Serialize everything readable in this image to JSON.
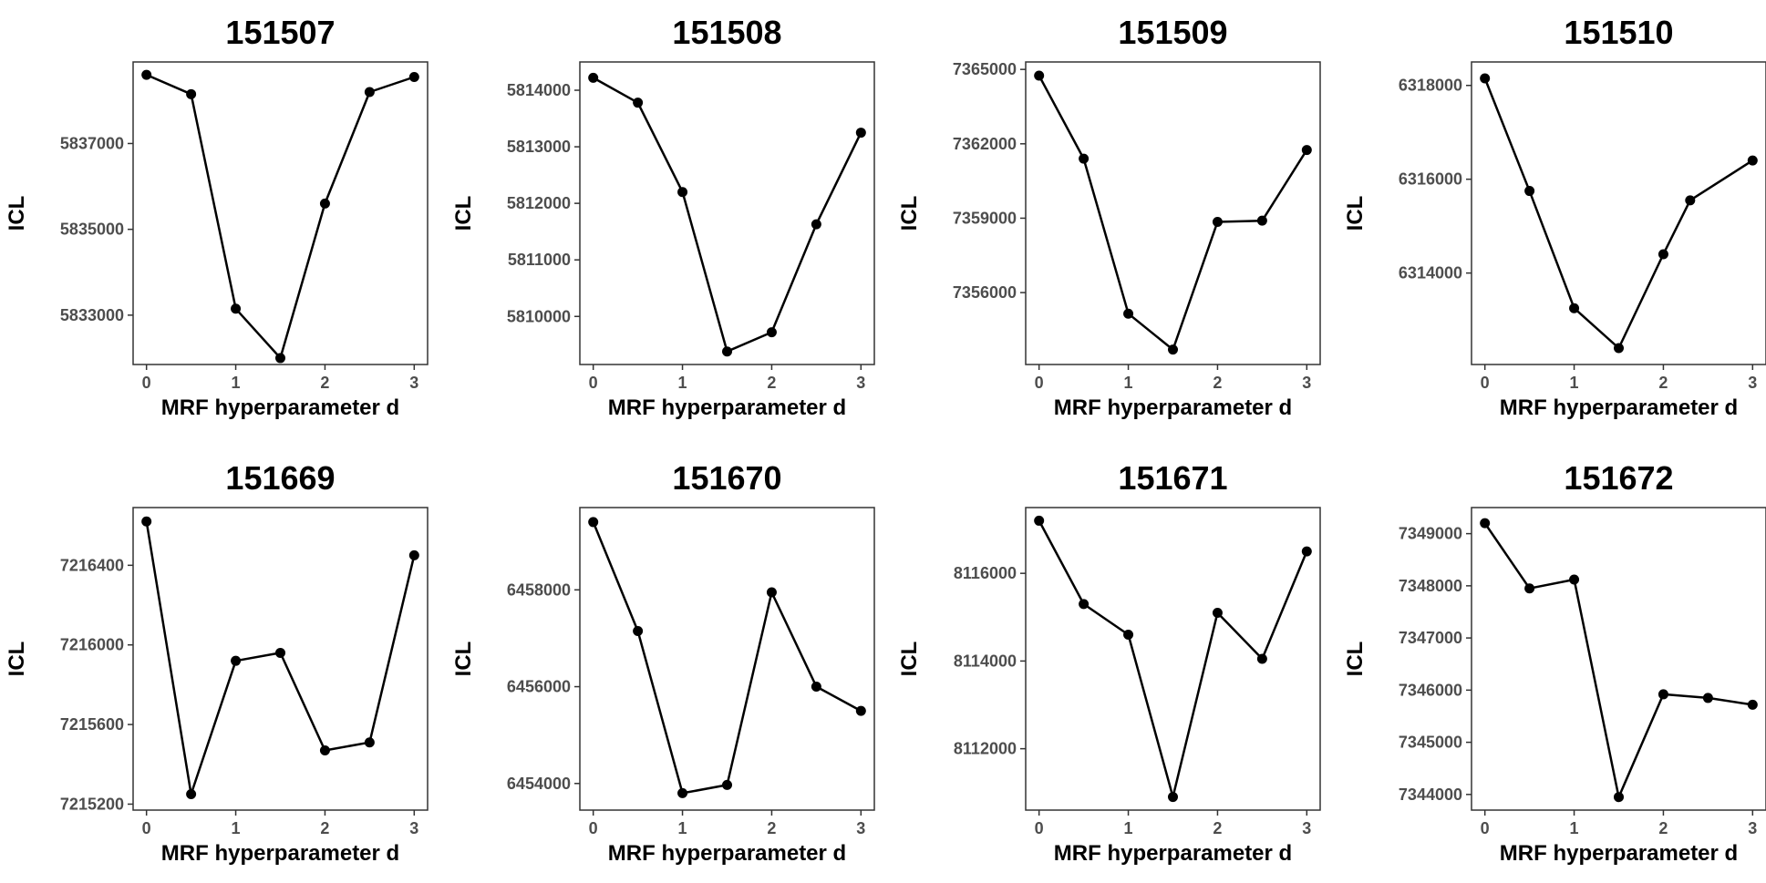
{
  "style": {
    "line_color": "#000000",
    "point_color": "#000000",
    "tick_label_color": "#4d4d4d",
    "frame_color": "#333333",
    "background": "#ffffff"
  },
  "chart_data": [
    {
      "type": "line",
      "title": "151507",
      "xlabel": "MRF hyperparameter d",
      "ylabel": "ICL",
      "x": [
        0,
        0.5,
        1,
        1.5,
        2,
        2.5,
        3
      ],
      "series": [
        {
          "values": [
            5838600,
            5838150,
            5833150,
            5832000,
            5835600,
            5838200,
            5838550
          ]
        }
      ],
      "xlim": [
        -0.15,
        3.15
      ],
      "ylim": [
        5831850,
        5838900
      ],
      "xticks": [
        0,
        1,
        2,
        3
      ],
      "yticks": [
        5833000,
        5835000,
        5837000
      ],
      "xtick_labels": [
        "0",
        "1",
        "2",
        "3"
      ],
      "ytick_labels": [
        "5833000",
        "5835000",
        "5837000"
      ],
      "grid": false
    },
    {
      "type": "line",
      "title": "151508",
      "xlabel": "MRF hyperparameter d",
      "ylabel": "ICL",
      "x": [
        0,
        0.5,
        1,
        1.5,
        2,
        2.5,
        3
      ],
      "series": [
        {
          "values": [
            5814220,
            5813780,
            5812200,
            5809380,
            5809720,
            5811630,
            5813250
          ]
        }
      ],
      "xlim": [
        -0.15,
        3.15
      ],
      "ylim": [
        5809150,
        5814500
      ],
      "xticks": [
        0,
        1,
        2,
        3
      ],
      "yticks": [
        5810000,
        5811000,
        5812000,
        5813000,
        5814000
      ],
      "xtick_labels": [
        "0",
        "1",
        "2",
        "3"
      ],
      "ytick_labels": [
        "5810000",
        "5811000",
        "5812000",
        "5813000",
        "5814000"
      ],
      "grid": false
    },
    {
      "type": "line",
      "title": "151509",
      "xlabel": "MRF hyperparameter d",
      "ylabel": "ICL",
      "x": [
        0,
        0.5,
        1,
        1.5,
        2,
        2.5,
        3
      ],
      "series": [
        {
          "values": [
            7364750,
            7361400,
            7355150,
            7353700,
            7358850,
            7358900,
            7361750
          ]
        }
      ],
      "xlim": [
        -0.15,
        3.15
      ],
      "ylim": [
        7353100,
        7365300
      ],
      "xticks": [
        0,
        1,
        2,
        3
      ],
      "yticks": [
        7356000,
        7359000,
        7362000,
        7365000
      ],
      "xtick_labels": [
        "0",
        "1",
        "2",
        "3"
      ],
      "ytick_labels": [
        "7356000",
        "7359000",
        "7362000",
        "7365000"
      ],
      "grid": false
    },
    {
      "type": "line",
      "title": "151510",
      "xlabel": "MRF hyperparameter d",
      "ylabel": "ICL",
      "x": [
        0,
        0.5,
        1,
        1.5,
        2,
        2.3,
        3
      ],
      "series": [
        {
          "values": [
            6318150,
            6315750,
            6313250,
            6312400,
            6314400,
            6315550,
            6316400
          ]
        }
      ],
      "xlim": [
        -0.15,
        3.15
      ],
      "ylim": [
        6312050,
        6318500
      ],
      "xticks": [
        0,
        1,
        2,
        3
      ],
      "yticks": [
        6314000,
        6316000,
        6318000
      ],
      "xtick_labels": [
        "0",
        "1",
        "2",
        "3"
      ],
      "ytick_labels": [
        "6314000",
        "6316000",
        "6318000"
      ],
      "grid": false
    },
    {
      "type": "line",
      "title": "151669",
      "xlabel": "MRF hyperparameter d",
      "ylabel": "ICL",
      "x": [
        0,
        0.5,
        1,
        1.5,
        2,
        2.5,
        3
      ],
      "series": [
        {
          "values": [
            7216620,
            7215250,
            7215920,
            7215960,
            7215470,
            7215510,
            7216450
          ]
        }
      ],
      "xlim": [
        -0.15,
        3.15
      ],
      "ylim": [
        7215170,
        7216690
      ],
      "xticks": [
        0,
        1,
        2,
        3
      ],
      "yticks": [
        7215200,
        7215600,
        7216000,
        7216400
      ],
      "xtick_labels": [
        "0",
        "1",
        "2",
        "3"
      ],
      "ytick_labels": [
        "7215200",
        "7215600",
        "7216000",
        "7216400"
      ],
      "grid": false
    },
    {
      "type": "line",
      "title": "151670",
      "xlabel": "MRF hyperparameter d",
      "ylabel": "ICL",
      "x": [
        0,
        0.5,
        1,
        1.5,
        2,
        2.5,
        3
      ],
      "series": [
        {
          "values": [
            6459400,
            6457150,
            6453800,
            6453970,
            6457950,
            6456000,
            6455500
          ]
        }
      ],
      "xlim": [
        -0.15,
        3.15
      ],
      "ylim": [
        6453450,
        6459700
      ],
      "xticks": [
        0,
        1,
        2,
        3
      ],
      "yticks": [
        6454000,
        6456000,
        6458000
      ],
      "xtick_labels": [
        "0",
        "1",
        "2",
        "3"
      ],
      "ytick_labels": [
        "6454000",
        "6456000",
        "6458000"
      ],
      "grid": false
    },
    {
      "type": "line",
      "title": "151671",
      "xlabel": "MRF hyperparameter d",
      "ylabel": "ICL",
      "x": [
        0,
        0.5,
        1,
        1.5,
        2,
        2.5,
        3
      ],
      "series": [
        {
          "values": [
            8117200,
            8115300,
            8114600,
            8110900,
            8115100,
            8114050,
            8116500
          ]
        }
      ],
      "xlim": [
        -0.15,
        3.15
      ],
      "ylim": [
        8110600,
        8117500
      ],
      "xticks": [
        0,
        1,
        2,
        3
      ],
      "yticks": [
        8112000,
        8114000,
        8116000
      ],
      "xtick_labels": [
        "0",
        "1",
        "2",
        "3"
      ],
      "ytick_labels": [
        "8112000",
        "8114000",
        "8116000"
      ],
      "grid": false
    },
    {
      "type": "line",
      "title": "151672",
      "xlabel": "MRF hyperparameter d",
      "ylabel": "ICL",
      "x": [
        0,
        0.5,
        1,
        1.5,
        2,
        2.5,
        3
      ],
      "series": [
        {
          "values": [
            7349200,
            7347950,
            7348120,
            7343950,
            7345920,
            7345850,
            7345720
          ]
        }
      ],
      "xlim": [
        -0.15,
        3.15
      ],
      "ylim": [
        7343700,
        7349500
      ],
      "xticks": [
        0,
        1,
        2,
        3
      ],
      "yticks": [
        7344000,
        7345000,
        7346000,
        7347000,
        7348000,
        7349000
      ],
      "xtick_labels": [
        "0",
        "1",
        "2",
        "3"
      ],
      "ytick_labels": [
        "7344000",
        "7345000",
        "7346000",
        "7347000",
        "7348000",
        "7349000"
      ],
      "grid": false
    }
  ]
}
